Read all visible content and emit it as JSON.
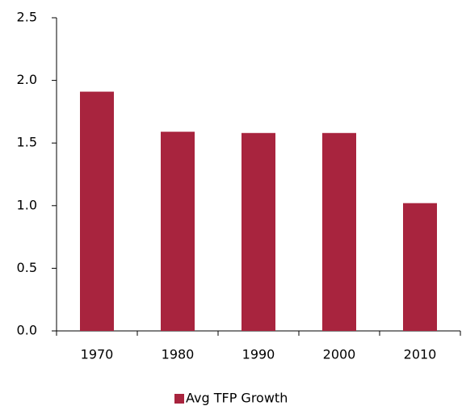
{
  "chart_data": {
    "type": "bar",
    "categories": [
      "1970",
      "1980",
      "1990",
      "2000",
      "2010"
    ],
    "series": [
      {
        "name": "Avg TFP Growth",
        "color": "#a8243e",
        "values": [
          1.91,
          1.59,
          1.58,
          1.58,
          1.02
        ]
      }
    ],
    "ylim": [
      0,
      2.5
    ],
    "yticks": [
      {
        "value": 0,
        "label": "0.0"
      },
      0.5,
      {
        "value": 1,
        "label": "1.0"
      },
      1.5,
      {
        "value": 2,
        "label": "2.0"
      },
      2.5
    ],
    "grid": false,
    "legend": "bottom"
  }
}
